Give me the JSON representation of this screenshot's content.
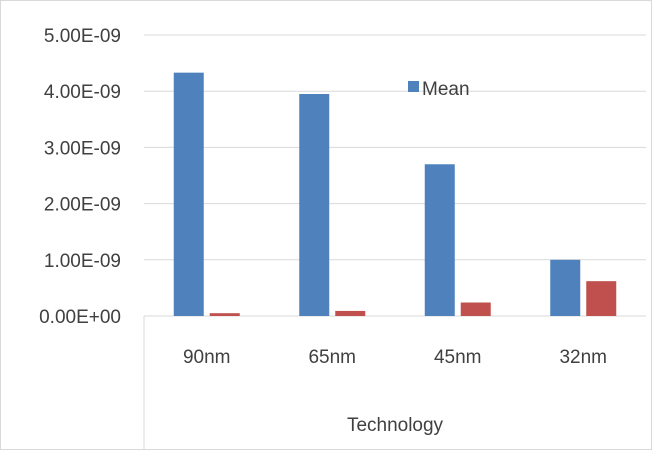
{
  "chart_data": {
    "type": "bar",
    "title": "",
    "xlabel": "Technology",
    "ylabel": "",
    "categories": [
      "90nm",
      "65nm",
      "45nm",
      "32nm"
    ],
    "ylim": [
      0,
      5e-09
    ],
    "yticks": [
      "0.00E+00",
      "1.00E-09",
      "2.00E-09",
      "3.00E-09",
      "4.00E-09",
      "5.00E-09"
    ],
    "grid": true,
    "legend_position": "top-center",
    "series": [
      {
        "name": "Mean",
        "color": "#4f81bd",
        "values": [
          4.33e-09,
          3.95e-09,
          2.7e-09,
          1e-09
        ]
      },
      {
        "name": "",
        "color": "#c0504d",
        "values": [
          5e-11,
          9e-11,
          2.4e-10,
          6.2e-10
        ]
      }
    ]
  }
}
